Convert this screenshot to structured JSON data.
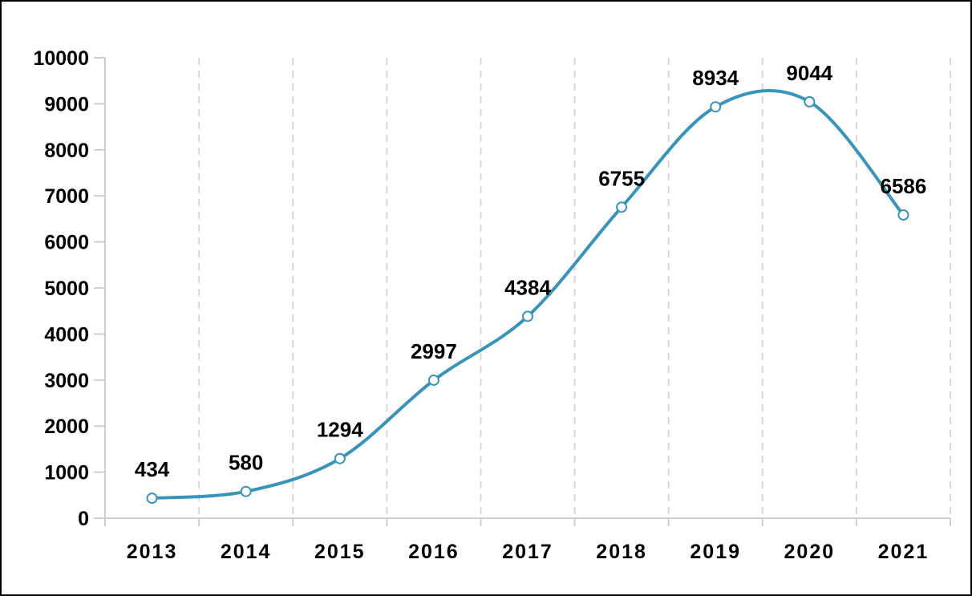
{
  "chart_data": {
    "type": "line",
    "title": "",
    "xlabel": "",
    "ylabel": "",
    "categories": [
      "2013",
      "2014",
      "2015",
      "2016",
      "2017",
      "2018",
      "2019",
      "2020",
      "2021"
    ],
    "series": [
      {
        "values": [
          434,
          580,
          1294,
          2997,
          4384,
          6755,
          8934,
          9044,
          6586
        ]
      }
    ],
    "data_labels": [
      "434",
      "580",
      "1294",
      "2997",
      "4384",
      "6755",
      "8934",
      "9044",
      "6586"
    ],
    "y_ticks": [
      "0",
      "1000",
      "2000",
      "3000",
      "4000",
      "5000",
      "6000",
      "7000",
      "8000",
      "9000",
      "10000"
    ],
    "ylim": [
      0,
      10000
    ],
    "grid": "vertical dashed",
    "legend": "none",
    "smooth": true,
    "colors": {
      "line": "#3a93b8",
      "marker_fill": "#ffffff",
      "grid": "#d9d9d9",
      "axis": "#cfcfcf"
    }
  }
}
